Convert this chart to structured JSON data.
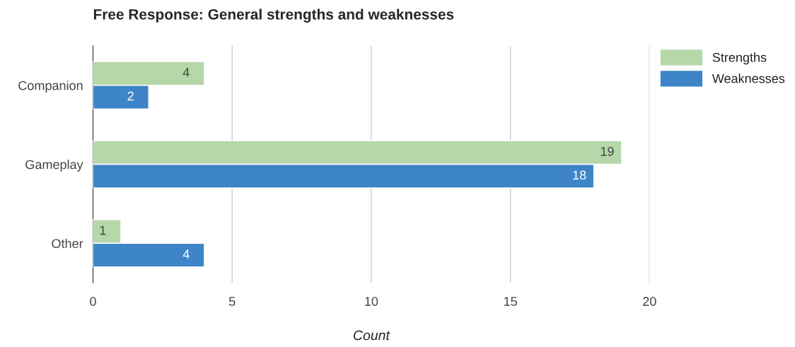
{
  "chart_data": {
    "type": "bar",
    "orientation": "horizontal",
    "title": "Free Response: General strengths and weaknesses",
    "xlabel": "Count",
    "categories": [
      "Companion",
      "Gameplay",
      "Other"
    ],
    "series": [
      {
        "name": "Strengths",
        "color": "#b6d7a8",
        "values": [
          4,
          19,
          1
        ]
      },
      {
        "name": "Weaknesses",
        "color": "#3d85c6",
        "values": [
          2,
          18,
          4
        ]
      }
    ],
    "xlim": [
      0,
      20
    ],
    "xticks": [
      0,
      5,
      10,
      15,
      20
    ],
    "grid": "x",
    "legend": "top right",
    "data_labels": true
  }
}
